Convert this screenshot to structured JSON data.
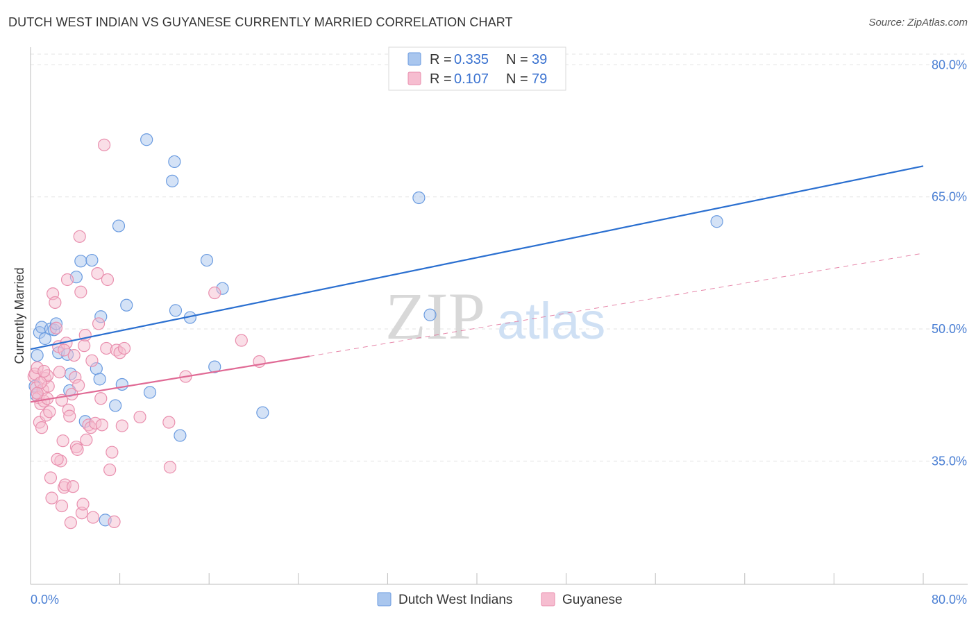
{
  "title": "DUTCH WEST INDIAN VS GUYANESE CURRENTLY MARRIED CORRELATION CHART",
  "source": "Source: ZipAtlas.com",
  "watermark": {
    "zip": "ZIP",
    "atlas": "atlas"
  },
  "chart_data": {
    "type": "scatter",
    "title": "DUTCH WEST INDIAN VS GUYANESE CURRENTLY MARRIED CORRELATION CHART",
    "xlabel": "",
    "ylabel": "Currently Married",
    "xlim": [
      0,
      80
    ],
    "ylim": [
      21,
      82
    ],
    "x_tick_labels": [
      "0.0%",
      "80.0%"
    ],
    "y_ticks": [
      35,
      50,
      65,
      80
    ],
    "y_tick_labels": [
      "35.0%",
      "50.0%",
      "65.0%",
      "80.0%"
    ],
    "grid": true,
    "legend_position": "top-center",
    "legend": [
      {
        "series": "Dutch West Indians",
        "r_label": "R =",
        "r_value": "0.335",
        "n_label": "N =",
        "n_value": "39"
      },
      {
        "series": "Guyanese",
        "r_label": "R =",
        "r_value": "0.107",
        "n_label": "N =",
        "n_value": "79"
      }
    ],
    "series": [
      {
        "name": "Dutch West Indians",
        "color": "#6a9be0",
        "fill": "#a9c6ee",
        "trend_color": "#2a6fd0",
        "trend": {
          "x0": 0,
          "y0": 47.7,
          "x1": 80,
          "y1": 68.5
        },
        "points": [
          [
            0.5,
            42.5
          ],
          [
            0.6,
            47.0
          ],
          [
            0.8,
            49.6
          ],
          [
            1.0,
            50.2
          ],
          [
            1.3,
            48.9
          ],
          [
            1.8,
            50.0
          ],
          [
            2.1,
            49.9
          ],
          [
            2.3,
            50.6
          ],
          [
            2.5,
            47.3
          ],
          [
            3.3,
            47.1
          ],
          [
            3.6,
            44.9
          ],
          [
            3.5,
            43.0
          ],
          [
            4.1,
            55.9
          ],
          [
            4.5,
            57.7
          ],
          [
            4.9,
            39.5
          ],
          [
            5.5,
            57.8
          ],
          [
            5.9,
            45.5
          ],
          [
            6.2,
            44.3
          ],
          [
            6.3,
            51.4
          ],
          [
            7.6,
            41.3
          ],
          [
            7.9,
            61.7
          ],
          [
            8.2,
            43.7
          ],
          [
            8.6,
            52.7
          ],
          [
            6.7,
            28.3
          ],
          [
            10.4,
            71.5
          ],
          [
            10.7,
            42.8
          ],
          [
            12.7,
            66.8
          ],
          [
            12.9,
            69.0
          ],
          [
            13.0,
            52.1
          ],
          [
            13.4,
            37.9
          ],
          [
            14.3,
            51.3
          ],
          [
            15.8,
            57.8
          ],
          [
            16.5,
            45.7
          ],
          [
            17.2,
            54.6
          ],
          [
            20.8,
            40.5
          ],
          [
            34.8,
            64.9
          ],
          [
            35.8,
            51.6
          ],
          [
            61.5,
            62.2
          ],
          [
            0.4,
            43.5
          ]
        ]
      },
      {
        "name": "Guyanese",
        "color": "#e98fae",
        "fill": "#f6bdd0",
        "trend_color": "#e06a95",
        "trend": {
          "x0": 0,
          "y0": 41.7,
          "x1": 25,
          "y1": 46.9
        },
        "trend_extension": {
          "x0": 25,
          "y0": 46.9,
          "x1": 80,
          "y1": 58.6
        },
        "points": [
          [
            0.3,
            44.6
          ],
          [
            0.4,
            44.9
          ],
          [
            0.5,
            43.3
          ],
          [
            0.6,
            45.6
          ],
          [
            0.7,
            42.2
          ],
          [
            0.8,
            39.4
          ],
          [
            0.9,
            41.5
          ],
          [
            1.0,
            38.8
          ],
          [
            1.1,
            43.1
          ],
          [
            1.2,
            41.8
          ],
          [
            1.3,
            44.4
          ],
          [
            1.4,
            40.2
          ],
          [
            1.5,
            42.1
          ],
          [
            1.6,
            43.5
          ],
          [
            1.7,
            40.6
          ],
          [
            1.8,
            33.1
          ],
          [
            1.9,
            30.8
          ],
          [
            2.0,
            54.0
          ],
          [
            2.2,
            53.0
          ],
          [
            2.3,
            50.1
          ],
          [
            2.5,
            48.0
          ],
          [
            2.6,
            45.1
          ],
          [
            2.7,
            35.0
          ],
          [
            2.8,
            29.9
          ],
          [
            2.9,
            37.3
          ],
          [
            3.0,
            32.0
          ],
          [
            3.1,
            32.3
          ],
          [
            3.2,
            48.4
          ],
          [
            3.3,
            55.6
          ],
          [
            3.4,
            40.8
          ],
          [
            3.5,
            40.1
          ],
          [
            3.6,
            28.0
          ],
          [
            3.7,
            42.6
          ],
          [
            3.8,
            32.1
          ],
          [
            3.9,
            47.0
          ],
          [
            4.0,
            44.5
          ],
          [
            4.1,
            36.6
          ],
          [
            4.2,
            36.3
          ],
          [
            4.3,
            43.6
          ],
          [
            4.4,
            60.5
          ],
          [
            4.5,
            54.2
          ],
          [
            4.6,
            29.1
          ],
          [
            4.7,
            30.1
          ],
          [
            4.8,
            48.1
          ],
          [
            4.9,
            49.3
          ],
          [
            5.0,
            37.4
          ],
          [
            5.2,
            39.1
          ],
          [
            5.4,
            38.8
          ],
          [
            5.6,
            28.6
          ],
          [
            5.8,
            39.3
          ],
          [
            6.0,
            56.3
          ],
          [
            6.1,
            50.6
          ],
          [
            6.3,
            42.1
          ],
          [
            6.4,
            39.1
          ],
          [
            6.6,
            70.9
          ],
          [
            6.8,
            47.8
          ],
          [
            6.9,
            55.6
          ],
          [
            7.1,
            34.0
          ],
          [
            7.3,
            36.0
          ],
          [
            7.5,
            28.1
          ],
          [
            7.7,
            47.6
          ],
          [
            8.0,
            47.3
          ],
          [
            8.2,
            39.0
          ],
          [
            8.4,
            47.8
          ],
          [
            9.8,
            40.0
          ],
          [
            12.4,
            39.4
          ],
          [
            12.5,
            34.3
          ],
          [
            13.9,
            44.6
          ],
          [
            16.5,
            54.1
          ],
          [
            18.9,
            48.7
          ],
          [
            20.5,
            46.3
          ],
          [
            2.4,
            35.2
          ],
          [
            1.5,
            44.7
          ],
          [
            0.9,
            43.9
          ],
          [
            3.0,
            47.6
          ],
          [
            5.5,
            46.4
          ],
          [
            2.8,
            41.9
          ],
          [
            1.2,
            45.2
          ],
          [
            0.6,
            42.7
          ]
        ]
      }
    ]
  }
}
